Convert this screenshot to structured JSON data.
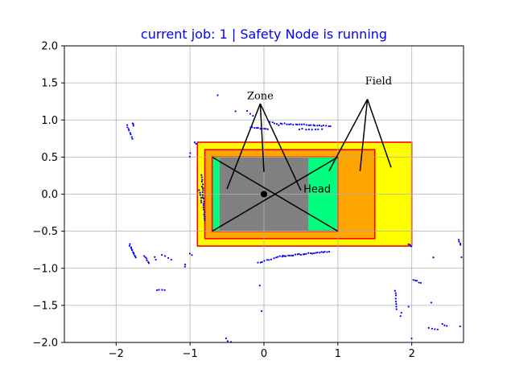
{
  "chart_data": {
    "type": "scatter",
    "title": "current job: 1 | Safety Node is running",
    "xlabel": "",
    "ylabel": "",
    "xlim": [
      -2.7,
      2.7
    ],
    "ylim": [
      -2.0,
      2.0
    ],
    "xticks": [
      -2,
      -1,
      0,
      1,
      2
    ],
    "xtick_labels": [
      "−2",
      "−1",
      "0",
      "1",
      "2"
    ],
    "yticks": [
      -2.0,
      -1.5,
      -1.0,
      -0.5,
      0.0,
      0.5,
      1.0,
      1.5,
      2.0
    ],
    "ytick_labels": [
      "−2.0",
      "−1.5",
      "−1.0",
      "−0.5",
      "0.0",
      "0.5",
      "1.0",
      "1.5",
      "2.0"
    ],
    "grid": true,
    "colors": {
      "title": "#0000ff",
      "points": "#0000ff",
      "field_outer": "#ffff00",
      "field_inner": "#ffa500",
      "zone_head": "#00ff7f",
      "zone": "#808080",
      "rect_edge": "#ff0000",
      "grid": "#b0b0b0",
      "lines": "#000000"
    },
    "regions": [
      {
        "name": "field-outer",
        "x": [
          -0.9,
          2.0
        ],
        "y": [
          -0.7,
          0.7
        ],
        "fill": "#ffff00",
        "edge": "#ff0000"
      },
      {
        "name": "field-inner",
        "x": [
          -0.8,
          1.5
        ],
        "y": [
          -0.6,
          0.6
        ],
        "fill": "#ffa500",
        "edge": "#ff0000"
      },
      {
        "name": "head-zone",
        "x": [
          -0.7,
          1.0
        ],
        "y": [
          -0.5,
          0.5
        ],
        "fill": "#00ff7f",
        "edge": "#ff0000"
      },
      {
        "name": "zone",
        "x": [
          -0.6,
          0.6
        ],
        "y": [
          -0.5,
          0.5
        ],
        "fill": "#808080",
        "edge": null
      }
    ],
    "cross_lines": [
      {
        "from": [
          -0.7,
          0.5
        ],
        "to": [
          1.0,
          -0.5
        ]
      },
      {
        "from": [
          -0.7,
          -0.5
        ],
        "to": [
          1.0,
          0.5
        ]
      }
    ],
    "center_marker": [
      0.0,
      0.0
    ],
    "annotations": [
      {
        "text": "Zone",
        "font": "serif",
        "x": -0.05,
        "y": 1.28,
        "anchor": "middle",
        "arrow_base": [
          -0.05,
          1.22
        ],
        "arrow_targets": [
          [
            -0.5,
            0.07
          ],
          [
            0.0,
            0.3
          ],
          [
            0.5,
            0.05
          ]
        ]
      },
      {
        "text": "Field",
        "font": "serif",
        "x": 1.55,
        "y": 1.48,
        "anchor": "middle",
        "arrow_base": [
          1.4,
          1.28
        ],
        "arrow_targets": [
          [
            0.88,
            0.31
          ],
          [
            1.3,
            0.31
          ],
          [
            1.72,
            0.36
          ]
        ]
      },
      {
        "text": "Head",
        "font": "sans",
        "x": 0.72,
        "y": 0.02,
        "anchor": "middle",
        "arrow_base": null,
        "arrow_targets": []
      }
    ],
    "point_clusters": [
      {
        "from": [
          -1.85,
          0.93
        ],
        "to": [
          -1.78,
          0.75
        ],
        "n": 8
      },
      {
        "from": [
          -1.78,
          0.96
        ],
        "to": [
          -1.76,
          0.93
        ],
        "n": 3
      },
      {
        "from": [
          -1.82,
          -0.68
        ],
        "to": [
          -1.73,
          -0.86
        ],
        "n": 12
      },
      {
        "from": [
          -1.62,
          -0.83
        ],
        "to": [
          -1.55,
          -0.93
        ],
        "n": 6
      },
      {
        "from": [
          -1.48,
          -0.85
        ],
        "to": [
          -1.47,
          -0.88
        ],
        "n": 2
      },
      {
        "from": [
          -1.38,
          -0.82
        ],
        "to": [
          -1.25,
          -0.88
        ],
        "n": 4
      },
      {
        "from": [
          -1.45,
          -1.29
        ],
        "to": [
          -1.35,
          -1.3
        ],
        "n": 4
      },
      {
        "from": [
          -1.07,
          -0.95
        ],
        "to": [
          -1.07,
          -0.97
        ],
        "n": 2
      },
      {
        "from": [
          -1.0,
          -0.8
        ],
        "to": [
          -0.97,
          -0.82
        ],
        "n": 2
      },
      {
        "from": [
          -1.0,
          0.55
        ],
        "to": [
          -1.0,
          0.5
        ],
        "n": 2
      },
      {
        "from": [
          -0.93,
          0.7
        ],
        "to": [
          -0.92,
          0.68
        ],
        "n": 2
      },
      {
        "from": [
          -0.84,
          0.25
        ],
        "to": [
          -0.8,
          -0.35
        ],
        "n": 22
      },
      {
        "from": [
          -0.87,
          0.05
        ],
        "to": [
          -0.84,
          -0.12
        ],
        "n": 6
      },
      {
        "from": [
          -0.62,
          1.34
        ],
        "to": [
          -0.62,
          1.34
        ],
        "n": 1
      },
      {
        "from": [
          -0.38,
          1.12
        ],
        "to": [
          -0.38,
          1.12
        ],
        "n": 1
      },
      {
        "from": [
          -0.22,
          1.12
        ],
        "to": [
          -0.15,
          1.05
        ],
        "n": 3
      },
      {
        "from": [
          -0.18,
          0.9
        ],
        "to": [
          0.05,
          0.87
        ],
        "n": 10
      },
      {
        "from": [
          0.08,
          0.98
        ],
        "to": [
          0.2,
          0.93
        ],
        "n": 5
      },
      {
        "from": [
          0.22,
          0.95
        ],
        "to": [
          0.9,
          0.92
        ],
        "n": 24
      },
      {
        "from": [
          0.48,
          0.88
        ],
        "to": [
          0.78,
          0.87
        ],
        "n": 8
      },
      {
        "from": [
          -0.08,
          -0.93
        ],
        "to": [
          0.25,
          -0.83
        ],
        "n": 12
      },
      {
        "from": [
          0.25,
          -0.84
        ],
        "to": [
          0.88,
          -0.77
        ],
        "n": 26
      },
      {
        "from": [
          -0.05,
          -1.23
        ],
        "to": [
          -0.05,
          -1.23
        ],
        "n": 1
      },
      {
        "from": [
          -0.03,
          -1.58
        ],
        "to": [
          -0.03,
          -1.58
        ],
        "n": 1
      },
      {
        "from": [
          -0.52,
          -1.95
        ],
        "to": [
          -0.45,
          -2.0
        ],
        "n": 3
      },
      {
        "from": [
          1.95,
          -0.68
        ],
        "to": [
          2.0,
          -0.7
        ],
        "n": 3
      },
      {
        "from": [
          2.02,
          -1.15
        ],
        "to": [
          2.12,
          -1.2
        ],
        "n": 5
      },
      {
        "from": [
          2.3,
          -0.85
        ],
        "to": [
          2.3,
          -0.85
        ],
        "n": 1
      },
      {
        "from": [
          2.27,
          -1.46
        ],
        "to": [
          2.27,
          -1.46
        ],
        "n": 1
      },
      {
        "from": [
          1.78,
          -1.3
        ],
        "to": [
          1.8,
          -1.55
        ],
        "n": 8
      },
      {
        "from": [
          1.85,
          -1.65
        ],
        "to": [
          1.86,
          -1.6
        ],
        "n": 2
      },
      {
        "from": [
          1.95,
          -1.52
        ],
        "to": [
          1.95,
          -1.52
        ],
        "n": 1
      },
      {
        "from": [
          2.0,
          -1.95
        ],
        "to": [
          2.0,
          -1.95
        ],
        "n": 1
      },
      {
        "from": [
          2.23,
          -1.8
        ],
        "to": [
          2.35,
          -1.83
        ],
        "n": 4
      },
      {
        "from": [
          2.42,
          -1.75
        ],
        "to": [
          2.47,
          -1.78
        ],
        "n": 3
      },
      {
        "from": [
          2.64,
          -0.62
        ],
        "to": [
          2.66,
          -0.68
        ],
        "n": 4
      },
      {
        "from": [
          2.68,
          -0.85
        ],
        "to": [
          2.68,
          -0.85
        ],
        "n": 1
      },
      {
        "from": [
          2.65,
          -1.78
        ],
        "to": [
          2.65,
          -1.78
        ],
        "n": 1
      }
    ]
  }
}
